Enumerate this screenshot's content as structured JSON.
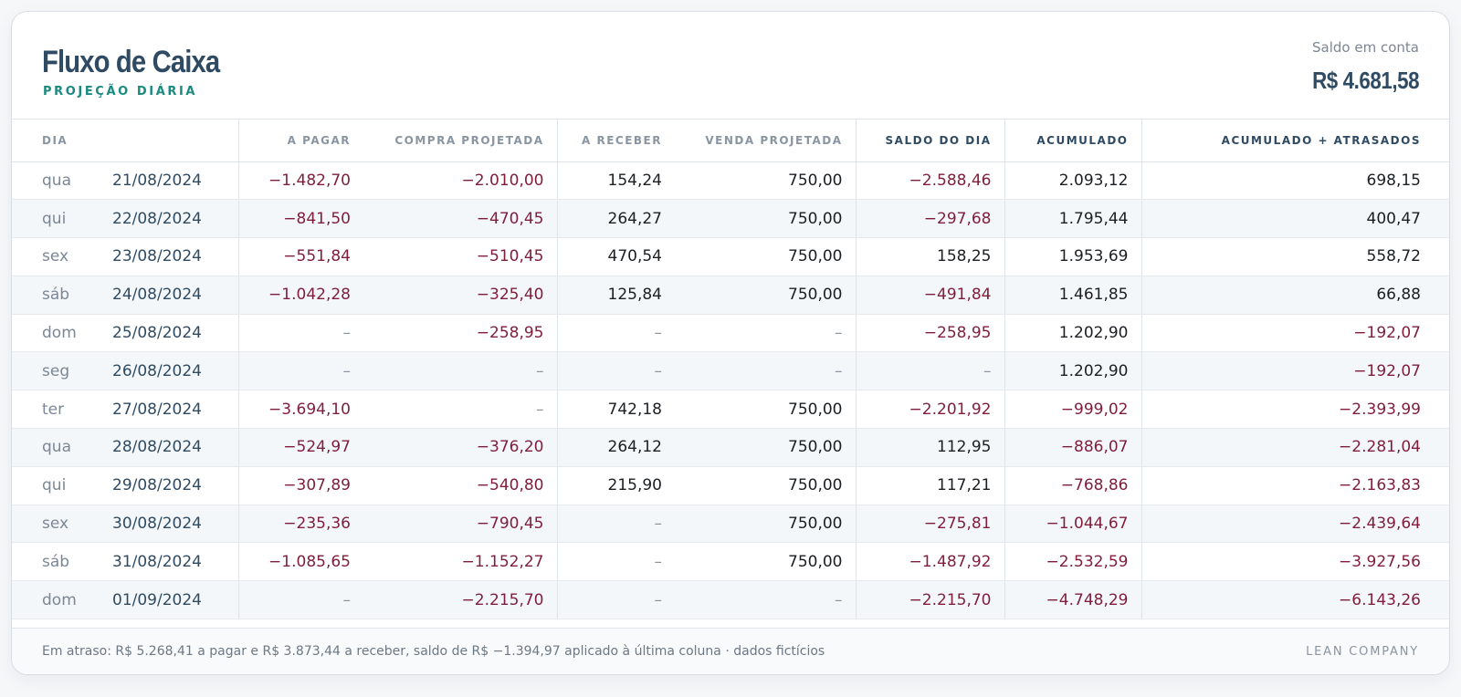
{
  "header": {
    "title": "Fluxo de Caixa",
    "subtitle": "PROJEÇÃO DIÁRIA",
    "balance_label": "Saldo em conta",
    "balance_value": "R$ 4.681,58"
  },
  "table": {
    "columns": [
      "DIA",
      "A PAGAR",
      "COMPRA PROJETADA",
      "A RECEBER",
      "VENDA PROJETADA",
      "SALDO DO DIA",
      "ACUMULADO",
      "ACUMULADO + ATRASADOS"
    ],
    "rows": [
      {
        "weekday": "qua",
        "date": "21/08/2024",
        "a_pagar": "−1.482,70",
        "compra": "−2.010,00",
        "a_receber": "154,24",
        "venda": "750,00",
        "saldo": "−2.588,46",
        "acumulado": "2.093,12",
        "acum_atrasados": "698,15"
      },
      {
        "weekday": "qui",
        "date": "22/08/2024",
        "a_pagar": "−841,50",
        "compra": "−470,45",
        "a_receber": "264,27",
        "venda": "750,00",
        "saldo": "−297,68",
        "acumulado": "1.795,44",
        "acum_atrasados": "400,47"
      },
      {
        "weekday": "sex",
        "date": "23/08/2024",
        "a_pagar": "−551,84",
        "compra": "−510,45",
        "a_receber": "470,54",
        "venda": "750,00",
        "saldo": "158,25",
        "acumulado": "1.953,69",
        "acum_atrasados": "558,72"
      },
      {
        "weekday": "sáb",
        "date": "24/08/2024",
        "a_pagar": "−1.042,28",
        "compra": "−325,40",
        "a_receber": "125,84",
        "venda": "750,00",
        "saldo": "−491,84",
        "acumulado": "1.461,85",
        "acum_atrasados": "66,88"
      },
      {
        "weekday": "dom",
        "date": "25/08/2024",
        "a_pagar": "–",
        "compra": "−258,95",
        "a_receber": "–",
        "venda": "–",
        "saldo": "−258,95",
        "acumulado": "1.202,90",
        "acum_atrasados": "−192,07"
      },
      {
        "weekday": "seg",
        "date": "26/08/2024",
        "a_pagar": "–",
        "compra": "–",
        "a_receber": "–",
        "venda": "–",
        "saldo": "–",
        "acumulado": "1.202,90",
        "acum_atrasados": "−192,07"
      },
      {
        "weekday": "ter",
        "date": "27/08/2024",
        "a_pagar": "−3.694,10",
        "compra": "–",
        "a_receber": "742,18",
        "venda": "750,00",
        "saldo": "−2.201,92",
        "acumulado": "−999,02",
        "acum_atrasados": "−2.393,99"
      },
      {
        "weekday": "qua",
        "date": "28/08/2024",
        "a_pagar": "−524,97",
        "compra": "−376,20",
        "a_receber": "264,12",
        "venda": "750,00",
        "saldo": "112,95",
        "acumulado": "−886,07",
        "acum_atrasados": "−2.281,04"
      },
      {
        "weekday": "qui",
        "date": "29/08/2024",
        "a_pagar": "−307,89",
        "compra": "−540,80",
        "a_receber": "215,90",
        "venda": "750,00",
        "saldo": "117,21",
        "acumulado": "−768,86",
        "acum_atrasados": "−2.163,83"
      },
      {
        "weekday": "sex",
        "date": "30/08/2024",
        "a_pagar": "−235,36",
        "compra": "−790,45",
        "a_receber": "–",
        "venda": "750,00",
        "saldo": "−275,81",
        "acumulado": "−1.044,67",
        "acum_atrasados": "−2.439,64"
      },
      {
        "weekday": "sáb",
        "date": "31/08/2024",
        "a_pagar": "−1.085,65",
        "compra": "−1.152,27",
        "a_receber": "–",
        "venda": "750,00",
        "saldo": "−1.487,92",
        "acumulado": "−2.532,59",
        "acum_atrasados": "−3.927,56"
      },
      {
        "weekday": "dom",
        "date": "01/09/2024",
        "a_pagar": "–",
        "compra": "−2.215,70",
        "a_receber": "–",
        "venda": "–",
        "saldo": "−2.215,70",
        "acumulado": "−4.748,29",
        "acum_atrasados": "−6.143,26"
      }
    ]
  },
  "footer": {
    "note": "Em atraso: R$ 5.268,41 a pagar e R$ 3.873,44 a receber, saldo de R$ −1.394,97 aplicado à última coluna · dados fictícios",
    "brand": "LEAN COMPANY"
  },
  "colors": {
    "negative": "#7f1d3b",
    "positive": "#1b1f23",
    "title": "#2f4b63",
    "accent": "#1a8a80"
  }
}
